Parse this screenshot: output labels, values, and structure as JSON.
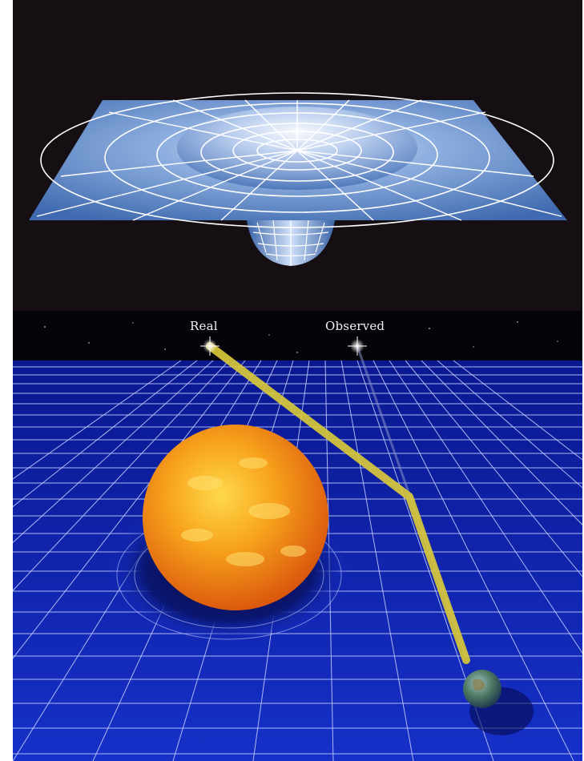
{
  "labels": {
    "real": "Real",
    "observed": "Observed"
  },
  "colors": {
    "space_background": "#150f14",
    "grid_sheet": "#5a80c0",
    "grid_plane": "#0d1fa8",
    "grid_lines": "#ffffff",
    "light_beam": "#d8c83a",
    "sun": "#f08a18",
    "earth": "#3a6a8a"
  },
  "icons": {
    "sun": "sun-sphere",
    "earth": "earth-sphere",
    "star_real": "star-sparkle",
    "star_observed": "star-sparkle"
  }
}
